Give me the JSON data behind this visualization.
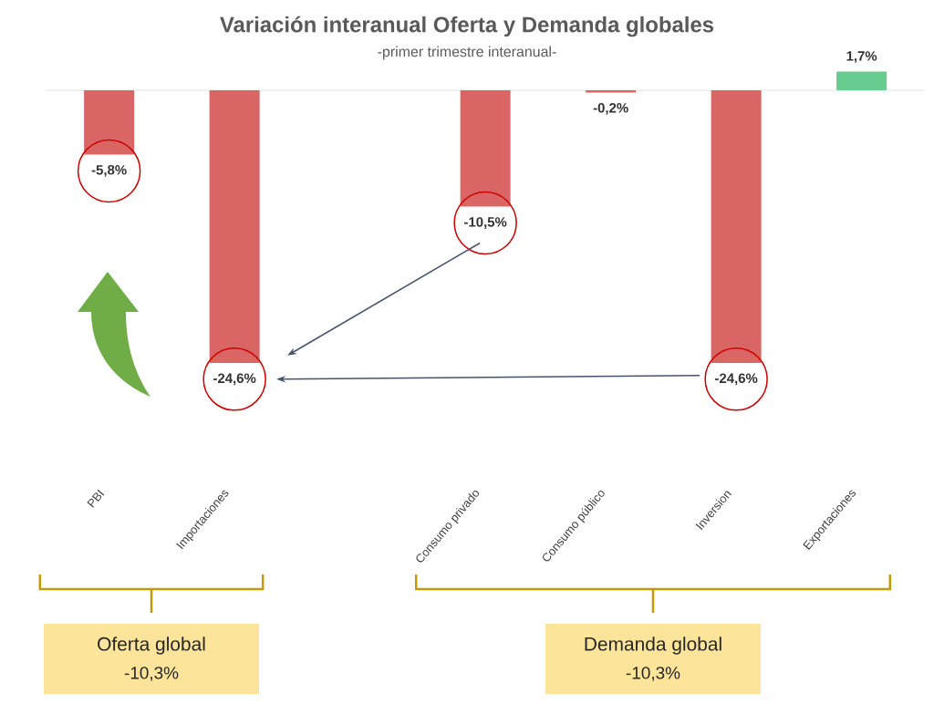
{
  "chart_data": {
    "type": "bar",
    "title": "Variación interanual Oferta y Demanda globales",
    "subtitle": "-primer trimestre interanual-",
    "categories": [
      "PBI",
      "Importaciones",
      null,
      "Consumo privado",
      "Consumo público",
      "Inversion",
      "Exportaciones"
    ],
    "values": [
      -5.8,
      -24.6,
      null,
      -10.5,
      -0.2,
      -24.6,
      1.7
    ],
    "colors": [
      "#d96565",
      "#d96565",
      "#d96565",
      "#d96565",
      "#d96565",
      "#d96565",
      "#66cc8f"
    ],
    "value_labels": [
      "-5,8%",
      "-24,6%",
      null,
      "-10,5%",
      "-0,2%",
      "-24,6%",
      "1,7%"
    ],
    "annotations": [
      "Oferta global",
      "-10,3%",
      "Demanda global",
      "-10,3%"
    ]
  }
}
